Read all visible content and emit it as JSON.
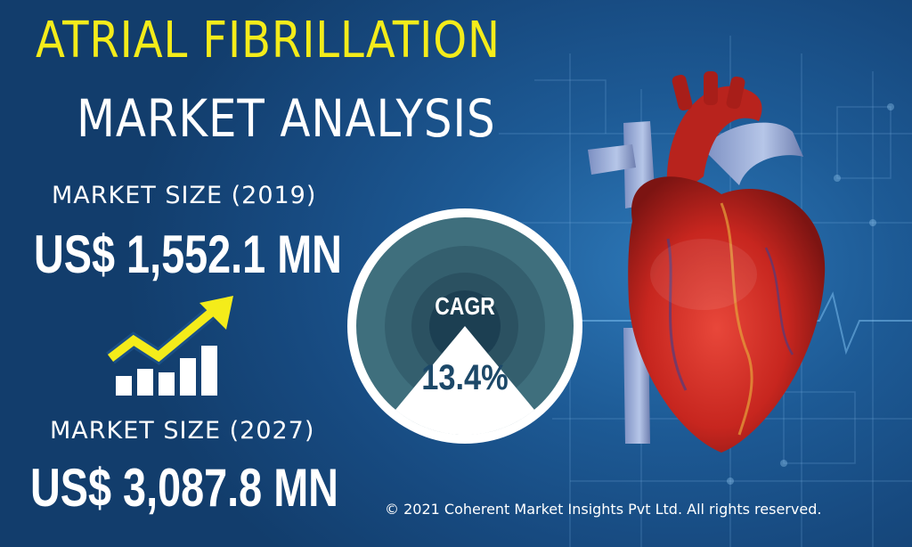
{
  "title": {
    "line1": "ATRIAL FIBRILLATION",
    "line2": "MARKET ANALYSIS"
  },
  "market_2019": {
    "label": "MARKET SIZE (2019)",
    "value": "US$ 1,552.1 MN"
  },
  "market_2027": {
    "label": "MARKET SIZE (2027)",
    "value": "US$ 3,087.8 MN"
  },
  "cagr": {
    "label": "CAGR",
    "value": "13.4%"
  },
  "copyright": "© 2021 Coherent Market Insights Pvt Ltd. All rights reserved.",
  "icons": {
    "growth": "bar-chart-up-arrow-icon",
    "heart": "heart-illustration"
  },
  "colors": {
    "title_yellow": "#f4ec1a",
    "background_blue": "#1d5a95",
    "gauge_teal": "#3f6f7d",
    "gauge_dark": "#1c3f52",
    "gauge_white": "#ffffff",
    "heart_red": "#c7261f"
  }
}
